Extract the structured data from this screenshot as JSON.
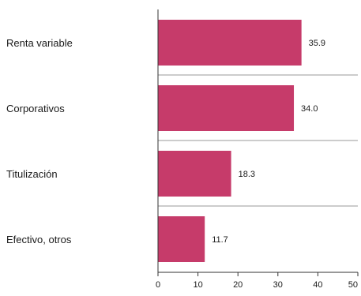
{
  "chart_data": {
    "type": "bar",
    "orientation": "horizontal",
    "title": "",
    "xlabel": "",
    "ylabel": "",
    "categories": [
      "Renta variable",
      "Corporativos",
      "Titulización",
      "Efectivo, otros"
    ],
    "values": [
      35.9,
      34.0,
      18.3,
      11.7
    ],
    "value_labels": [
      "35.9",
      "34.0",
      "18.3",
      "11.7"
    ],
    "xlim": [
      0,
      50
    ],
    "xticks": [
      0,
      10,
      20,
      30,
      40,
      50
    ],
    "xtick_labels": [
      "0",
      "10",
      "20",
      "30",
      "40",
      "50"
    ],
    "grid": "horizontal separators between categories",
    "legend": "none",
    "colors": {
      "bar": "#c63b6a",
      "separator": "#9a9a9a",
      "axis": "#333333"
    }
  }
}
